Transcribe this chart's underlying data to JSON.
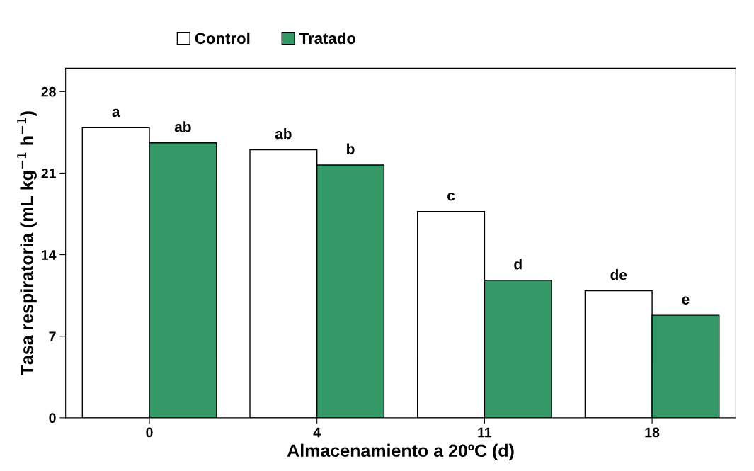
{
  "chart_data": {
    "type": "bar",
    "xlabel": "Almacenamiento a 20ºC (d)",
    "ylabel": "Tasa respiratoria (mL kg$^{−1}$ h$^{−1}$)",
    "categories": [
      "0",
      "4",
      "11",
      "18"
    ],
    "series": [
      {
        "name": "Control",
        "color": "#ffffff",
        "values": [
          24.9,
          23.0,
          17.7,
          10.9
        ],
        "value_labels": [
          "a",
          "ab",
          "c",
          "de"
        ]
      },
      {
        "name": "Tratado",
        "color": "#339966",
        "values": [
          23.6,
          21.7,
          11.8,
          8.8
        ],
        "value_labels": [
          "ab",
          "b",
          "d",
          "e"
        ]
      }
    ],
    "ylim": [
      0,
      30
    ],
    "yticks": [
      0,
      7,
      14,
      21,
      28
    ],
    "grid": false,
    "legend": "top"
  }
}
